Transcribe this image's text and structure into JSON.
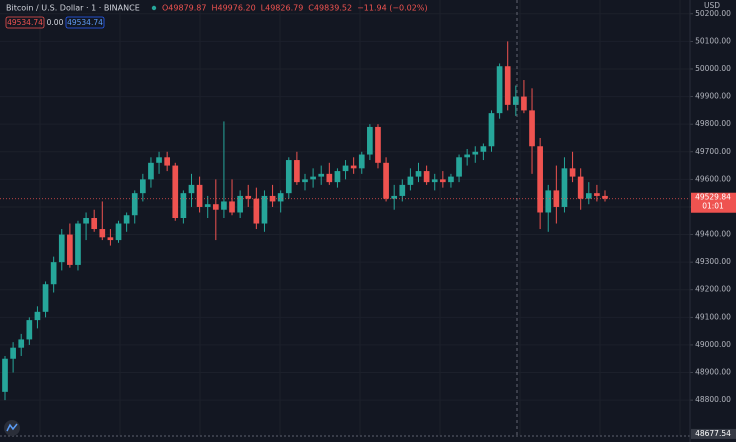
{
  "chart_data": {
    "type": "candlestick",
    "symbol": "Bitcoin / U.S. Dollar · 1 · BINANCE",
    "ohlc_legend": [
      "O49879.87",
      "H49976.20",
      "L49826.79",
      "C49839.52",
      "−11.94 (−0.02%)"
    ],
    "badges": [
      "49534.74",
      "0.00",
      "49534.74"
    ],
    "currency": "USD",
    "last_price": 49529.84,
    "countdown": "01:01",
    "crosshair_price": 48677.54,
    "up_color": "#26a69a",
    "down_color": "#ef5350",
    "ylim": [
      48670,
      50250
    ],
    "yticks": [
      {
        "value": 48800,
        "label": "48800.00"
      },
      {
        "value": 48900,
        "label": "48900.00"
      },
      {
        "value": 49000,
        "label": "49000.00"
      },
      {
        "value": 49100,
        "label": "49100.00"
      },
      {
        "value": 49200,
        "label": "49200.00"
      },
      {
        "value": 49300,
        "label": "49300.00"
      },
      {
        "value": 49400,
        "label": "49400.00"
      },
      {
        "value": 49500,
        "label": "49500.00"
      },
      {
        "value": 49600,
        "label": "49600.00"
      },
      {
        "value": 49700,
        "label": "49700.00"
      },
      {
        "value": 49800,
        "label": "49800.00"
      },
      {
        "value": 49900,
        "label": "49900.00"
      },
      {
        "value": 50000,
        "label": "50000.00"
      },
      {
        "value": 50100,
        "label": "50100.00"
      },
      {
        "value": 50200,
        "label": "50200.00"
      }
    ],
    "grid": true,
    "open": [
      48830,
      48950,
      48990,
      49020,
      49090,
      49120,
      49220,
      49300,
      49400,
      49290,
      49440,
      49460,
      49420,
      49390,
      49380,
      49440,
      49470,
      49550,
      49600,
      49660,
      49680,
      49650,
      49460,
      49550,
      49580,
      49500,
      49510,
      49490,
      49520,
      49480,
      49540,
      49530,
      49440,
      49540,
      49520,
      49550,
      49670,
      49590,
      49600,
      49610,
      49620,
      49590,
      49630,
      49650,
      49640,
      49690,
      49790,
      49660,
      49530,
      49540,
      49580,
      49610,
      49630,
      49590,
      49600,
      49590,
      49610,
      49680,
      49690,
      49700,
      49720,
      49840,
      50010,
      49870,
      49900,
      49850,
      49720,
      49480,
      49560,
      49500,
      49640,
      49610,
      49530,
      49550,
      49540
    ],
    "high": [
      48960,
      49010,
      49040,
      49100,
      49140,
      49230,
      49320,
      49420,
      49440,
      49450,
      49480,
      49490,
      49520,
      49420,
      49450,
      49480,
      49560,
      49620,
      49680,
      49700,
      49700,
      49660,
      49560,
      49620,
      49610,
      49540,
      49600,
      49810,
      49600,
      49560,
      49580,
      49570,
      49560,
      49580,
      49560,
      49680,
      49700,
      49620,
      49640,
      49650,
      49660,
      49640,
      49670,
      49680,
      49700,
      49800,
      49800,
      49680,
      49580,
      49600,
      49640,
      49660,
      49650,
      49620,
      49630,
      49620,
      49690,
      49710,
      49720,
      49730,
      49850,
      50020,
      50100,
      49940,
      49960,
      49930,
      49750,
      49580,
      49650,
      49680,
      49700,
      49640,
      49590,
      49580,
      49560
    ],
    "low": [
      48800,
      48900,
      48960,
      49000,
      49060,
      49100,
      49190,
      49270,
      49280,
      49270,
      49380,
      49410,
      49380,
      49360,
      49370,
      49410,
      49440,
      49520,
      49570,
      49620,
      49630,
      49450,
      49440,
      49500,
      49480,
      49460,
      49380,
      49460,
      49470,
      49460,
      49500,
      49420,
      49410,
      49500,
      49480,
      49530,
      49580,
      49560,
      49570,
      49580,
      49580,
      49570,
      49600,
      49620,
      49620,
      49670,
      49640,
      49520,
      49490,
      49520,
      49560,
      49590,
      49580,
      49560,
      49570,
      49570,
      49590,
      49650,
      49660,
      49670,
      49700,
      49820,
      49850,
      49830,
      49840,
      49620,
      49420,
      49410,
      49440,
      49480,
      49590,
      49490,
      49510,
      49520,
      49520
    ],
    "close": [
      48950,
      48990,
      49020,
      49090,
      49120,
      49220,
      49300,
      49400,
      49290,
      49440,
      49460,
      49420,
      49390,
      49380,
      49440,
      49470,
      49550,
      49600,
      49660,
      49680,
      49650,
      49460,
      49550,
      49580,
      49500,
      49510,
      49490,
      49520,
      49480,
      49540,
      49530,
      49440,
      49540,
      49520,
      49550,
      49670,
      49590,
      49600,
      49610,
      49620,
      49590,
      49630,
      49650,
      49640,
      49690,
      49790,
      49660,
      49530,
      49540,
      49580,
      49610,
      49630,
      49590,
      49600,
      49590,
      49610,
      49680,
      49690,
      49700,
      49720,
      49840,
      50010,
      49870,
      49900,
      49850,
      49720,
      49480,
      49560,
      49500,
      49640,
      49610,
      49530,
      49550,
      49540,
      49530
    ]
  }
}
